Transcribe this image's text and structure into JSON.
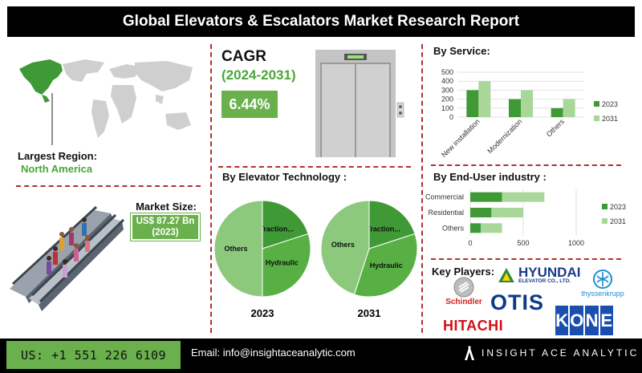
{
  "header": {
    "title": "Global Elevators & Escalators Market Research Report"
  },
  "left": {
    "largest_region_label": "Largest Region:",
    "largest_region_value": "North America",
    "market_size_label": "Market Size:",
    "market_size_value": "US$ 87.27 Bn",
    "market_size_year": "(2023)"
  },
  "cagr": {
    "label": "CAGR",
    "period": "(2024-2031)",
    "value": "6.44%"
  },
  "sections": {
    "elevator_tech": "By Elevator Technology :",
    "service": "By Service:",
    "end_user": "By End-User industry :",
    "key_players": "Key Players:"
  },
  "key_players": [
    "HYUNDAI",
    "ELEVATOR CO., LTD.",
    "Schindler",
    "OTIS",
    "thyssenkrupp",
    "HITACHI",
    "KONE"
  ],
  "footer": {
    "phone": "US: +1 551 226 6109",
    "email": "Email: info@insightaceanalytic.com",
    "brand": "INSIGHT ACE ANALYTIC"
  },
  "colors": {
    "dark_green": "#3f9a36",
    "light_green": "#a9d79a",
    "mid_green": "#6ab04c",
    "pie_light": "#8dc97c"
  },
  "chart_data": [
    {
      "type": "bar",
      "categories": [
        "New installation",
        "Modernization",
        "Others"
      ],
      "series": [
        {
          "name": "2023",
          "values": [
            300,
            200,
            100
          ]
        },
        {
          "name": "2031",
          "values": [
            400,
            300,
            200
          ]
        }
      ],
      "ylim": [
        0,
        500
      ],
      "yticks": [
        0,
        100,
        200,
        300,
        400,
        500
      ],
      "legend": "right"
    },
    {
      "type": "bar",
      "orientation": "horizontal",
      "stacked": true,
      "categories": [
        "Commercial",
        "Residential",
        "Others"
      ],
      "series": [
        {
          "name": "2023",
          "values": [
            300,
            200,
            100
          ]
        },
        {
          "name": "2031",
          "values": [
            400,
            300,
            200
          ]
        }
      ],
      "xlim": [
        0,
        1000
      ],
      "xticks": [
        0,
        500,
        1000
      ],
      "legend": "right"
    },
    {
      "type": "pie",
      "title": "2023",
      "labels": [
        "Traction...",
        "Hydraulic",
        "Others"
      ],
      "values": [
        20,
        30,
        50
      ]
    },
    {
      "type": "pie",
      "title": "2031",
      "labels": [
        "Traction...",
        "Hydraulic",
        "Others"
      ],
      "values": [
        20,
        35,
        45
      ]
    }
  ]
}
